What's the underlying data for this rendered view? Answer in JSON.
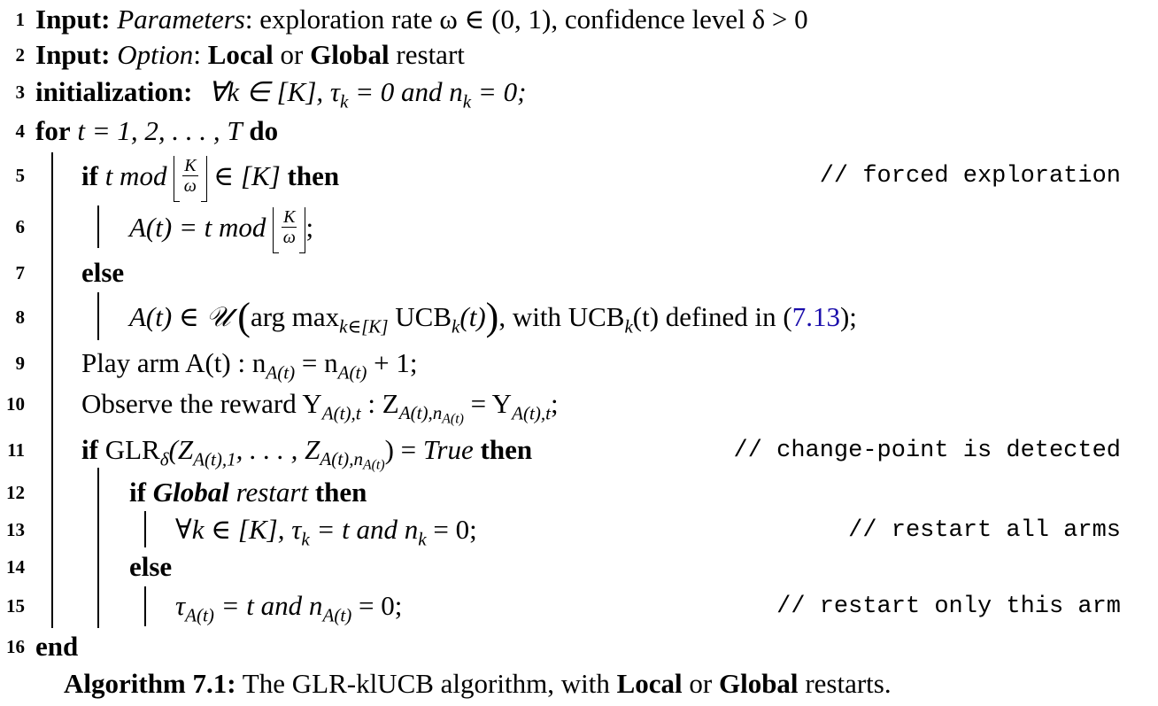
{
  "lines": [
    {
      "n": "1",
      "parts": [
        "Input:",
        "Parameters",
        ": exploration rate ω ∈ (0, 1), confidence level δ > 0"
      ]
    },
    {
      "n": "2",
      "parts": [
        "Input:",
        "Option",
        ":",
        "Local",
        "or",
        "Global",
        "restart"
      ]
    },
    {
      "n": "3",
      "parts": [
        "initialization:",
        "∀k ∈ [K], τ",
        "k",
        " = 0 and n",
        "k",
        " = 0;"
      ]
    },
    {
      "n": "4",
      "parts": [
        "for",
        "t = 1, 2, . . . , T",
        "do"
      ]
    },
    {
      "n": "5",
      "parts": [
        "if",
        "t  mod",
        "K",
        "ω",
        "∈ [K]",
        "then"
      ],
      "comment": "// forced exploration"
    },
    {
      "n": "6",
      "parts": [
        "A(t) = t  mod",
        "K",
        "ω",
        ";"
      ]
    },
    {
      "n": "7",
      "parts": [
        "else"
      ]
    },
    {
      "n": "8",
      "parts": [
        "A(t) ∈ 𝒰",
        "arg max",
        "k∈[K]",
        "UCB",
        "k",
        "(t)",
        ", with UCB",
        "k",
        "(t) defined in (",
        "7.13",
        ");"
      ]
    },
    {
      "n": "9",
      "parts": [
        "Play arm  A(t) : n",
        "A(t)",
        " = n",
        "A(t)",
        " + 1;"
      ]
    },
    {
      "n": "10",
      "parts": [
        "Observe the reward Y",
        "A(t),t",
        " : Z",
        "A(t),n",
        "A(t)",
        " = Y",
        "A(t),t",
        ";"
      ]
    },
    {
      "n": "11",
      "parts": [
        "if",
        "GLR",
        "δ",
        "(Z",
        "A(t),1",
        ", . . . , Z",
        "A(t),n",
        "A(t)",
        ") =",
        "True",
        "then"
      ],
      "comment": "// change-point is detected"
    },
    {
      "n": "12",
      "parts": [
        "if",
        "Global",
        "restart",
        "then"
      ]
    },
    {
      "n": "13",
      "parts": [
        "∀k ∈ [K], τ",
        "k",
        " = t and n",
        "k",
        " = 0;"
      ],
      "comment": "// restart all arms"
    },
    {
      "n": "14",
      "parts": [
        "else"
      ]
    },
    {
      "n": "15",
      "parts": [
        "τ",
        "A(t)",
        " = t and n",
        "A(t)",
        " = 0;"
      ],
      "comment": "// restart only this arm"
    },
    {
      "n": "16",
      "parts": [
        "end"
      ]
    }
  ],
  "caption": {
    "label": "Algorithm 7.1:",
    "text_1": "The GLR-klUCB algorithm, with",
    "local": "Local",
    "or": "or",
    "global": "Global",
    "text_2": "restarts."
  }
}
